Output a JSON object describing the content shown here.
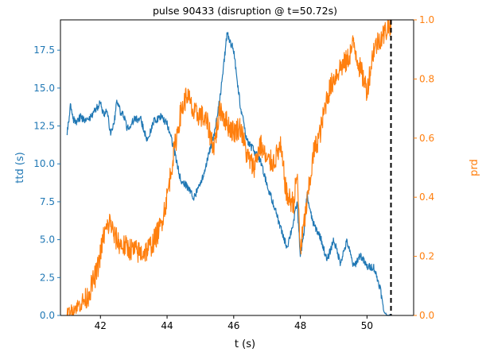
{
  "chart_data": {
    "type": "line",
    "title": "pulse 90433 (disruption @ t=50.72s)",
    "xlabel": "t (s)",
    "ylabel_left": "ttd (s)",
    "ylabel_right": "prd",
    "xlim": [
      40.8,
      51.4
    ],
    "ylim_left": [
      0,
      19.5
    ],
    "ylim_right": [
      0,
      1.0
    ],
    "x_ticks": [
      42,
      44,
      46,
      48,
      50
    ],
    "x_tick_labels": [
      "42",
      "44",
      "46",
      "48",
      "50"
    ],
    "y_left_ticks": [
      0,
      2.5,
      5,
      7.5,
      10,
      12.5,
      15,
      17.5
    ],
    "y_left_tick_labels": [
      "0.0",
      "2.5",
      "5.0",
      "7.5",
      "10.0",
      "12.5",
      "15.0",
      "17.5"
    ],
    "y_right_ticks": [
      0,
      0.2,
      0.4,
      0.6,
      0.8,
      1.0
    ],
    "y_right_tick_labels": [
      "0.0",
      "0.2",
      "0.4",
      "0.6",
      "0.8",
      "1.0"
    ],
    "grid": false,
    "colors": {
      "ttd": "#1f77b4",
      "prd": "#ff7f0e",
      "disruption": "#000000"
    },
    "disruption_time": 50.72,
    "series": [
      {
        "axis": "left",
        "color": "#1f77b4",
        "x": [
          41.0,
          41.1,
          41.2,
          41.3,
          41.4,
          41.6,
          41.8,
          42.0,
          42.1,
          42.2,
          42.3,
          42.4,
          42.5,
          42.6,
          42.7,
          42.8,
          43.0,
          43.2,
          43.4,
          43.6,
          43.8,
          44.0,
          44.2,
          44.4,
          44.6,
          44.8,
          45.0,
          45.2,
          45.4,
          45.6,
          45.8,
          46.0,
          46.2,
          46.4,
          46.6,
          46.8,
          47.0,
          47.2,
          47.4,
          47.6,
          47.8,
          47.9,
          48.0,
          48.1,
          48.2,
          48.3,
          48.4,
          48.6,
          48.8,
          49.0,
          49.2,
          49.4,
          49.6,
          49.8,
          50.0,
          50.2,
          50.4,
          50.5,
          50.6,
          50.72
        ],
        "y": [
          12.0,
          13.8,
          12.9,
          12.8,
          13.1,
          12.8,
          13.4,
          14.0,
          13.2,
          13.5,
          12.0,
          12.5,
          14.2,
          13.4,
          13.2,
          12.3,
          12.9,
          13.0,
          11.5,
          12.8,
          13.1,
          12.7,
          11.0,
          9.0,
          8.5,
          7.8,
          8.6,
          10.2,
          11.8,
          14.5,
          18.6,
          17.5,
          13.8,
          11.5,
          10.9,
          10.2,
          8.6,
          7.3,
          5.8,
          4.5,
          6.2,
          7.5,
          4.0,
          5.2,
          8.0,
          6.8,
          6.0,
          5.2,
          3.6,
          5.0,
          3.5,
          4.9,
          3.2,
          4.0,
          3.2,
          3.2,
          1.8,
          0.3,
          0.0,
          0.0
        ],
        "noise": 0.25
      },
      {
        "axis": "right",
        "color": "#ff7f0e",
        "x": [
          41.0,
          41.3,
          41.6,
          41.9,
          42.1,
          42.3,
          42.4,
          42.6,
          42.8,
          43.0,
          43.2,
          43.4,
          43.6,
          43.8,
          44.0,
          44.2,
          44.4,
          44.6,
          44.8,
          45.0,
          45.2,
          45.4,
          45.6,
          45.8,
          46.0,
          46.2,
          46.4,
          46.6,
          46.8,
          47.0,
          47.2,
          47.4,
          47.6,
          47.8,
          47.9,
          48.0,
          48.2,
          48.4,
          48.6,
          48.8,
          49.0,
          49.2,
          49.4,
          49.6,
          49.8,
          49.9,
          50.0,
          50.2,
          50.4,
          50.5,
          50.6,
          50.72
        ],
        "y": [
          0.01,
          0.03,
          0.06,
          0.15,
          0.27,
          0.32,
          0.27,
          0.24,
          0.23,
          0.22,
          0.21,
          0.22,
          0.25,
          0.3,
          0.4,
          0.55,
          0.68,
          0.75,
          0.68,
          0.68,
          0.65,
          0.57,
          0.7,
          0.65,
          0.62,
          0.64,
          0.54,
          0.5,
          0.58,
          0.52,
          0.52,
          0.57,
          0.4,
          0.38,
          0.48,
          0.22,
          0.38,
          0.55,
          0.62,
          0.74,
          0.8,
          0.84,
          0.86,
          0.92,
          0.83,
          0.8,
          0.76,
          0.9,
          0.94,
          0.95,
          0.97,
          0.99
        ],
        "noise": 0.04
      }
    ]
  }
}
